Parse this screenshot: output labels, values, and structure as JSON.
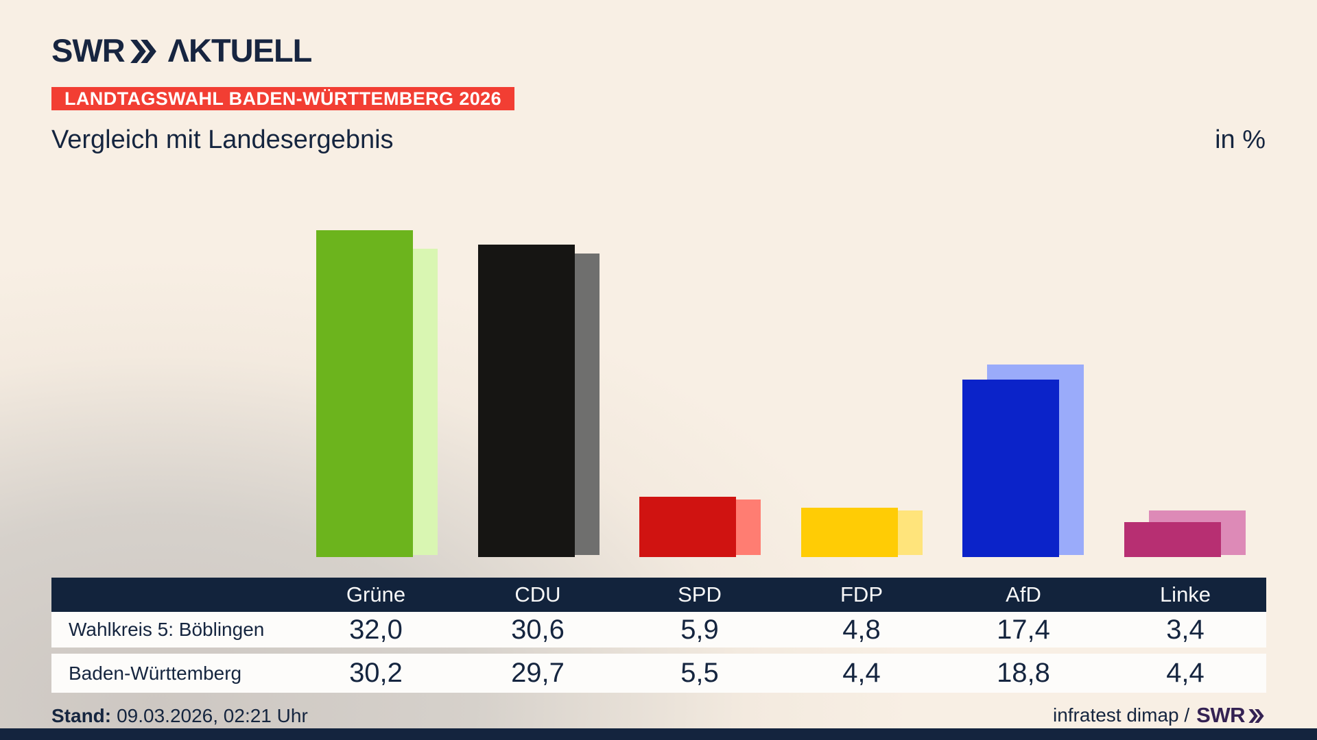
{
  "header": {
    "logo_brand": "SWR",
    "logo_suffix": "ΛKTUELL",
    "badge": "LANDTAGSWAHL BADEN-WÜRTTEMBERG 2026",
    "title": "Vergleich mit Landesergebnis",
    "unit": "in %"
  },
  "chart_data": {
    "type": "bar",
    "title": "Vergleich mit Landesergebnis",
    "unit": "%",
    "categories": [
      "Grüne",
      "CDU",
      "SPD",
      "FDP",
      "AfD",
      "Linke"
    ],
    "series": [
      {
        "name": "Wahlkreis 5: Böblingen",
        "values": [
          32.0,
          30.6,
          5.9,
          4.8,
          17.4,
          3.4
        ]
      },
      {
        "name": "Baden-Württemberg",
        "values": [
          30.2,
          29.7,
          5.5,
          4.4,
          18.8,
          4.4
        ]
      }
    ],
    "bar_colors_wahlkreis": [
      "#6cb41d",
      "#161513",
      "#d01311",
      "#ffcc05",
      "#0b23c9",
      "#b72f72"
    ],
    "bar_colors_land": [
      "#d9f6b2",
      "#6f6f6e",
      "#ff7d72",
      "#ffe47b",
      "#9aabfa",
      "#dd8ab7"
    ],
    "ylim": [
      0,
      35
    ],
    "grid": false,
    "legend_position": "table rows below chart"
  },
  "table": {
    "columns": [
      "Grüne",
      "CDU",
      "SPD",
      "FDP",
      "AfD",
      "Linke"
    ],
    "rows": [
      {
        "label": "Wahlkreis 5: Böblingen",
        "values": [
          "32,0",
          "30,6",
          "5,9",
          "4,8",
          "17,4",
          "3,4"
        ]
      },
      {
        "label": "Baden-Württemberg",
        "values": [
          "30,2",
          "29,7",
          "5,5",
          "4,4",
          "18,8",
          "4,4"
        ]
      }
    ]
  },
  "footer": {
    "stand_label": "Stand:",
    "stand_value": "09.03.2026, 02:21 Uhr",
    "source_text": "infratest dimap /",
    "source_brand": "SWR"
  },
  "colors": {
    "navy_text": "#15253f",
    "table_header_bg": "#12233c",
    "badge_red": "#f23e33",
    "footer_brand": "#342253",
    "background_cream": "#f8efe4",
    "background_gray": "#cdc7c2"
  }
}
